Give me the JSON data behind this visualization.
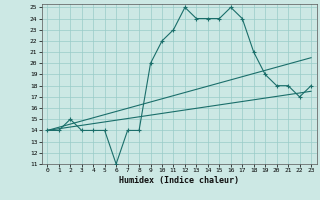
{
  "xlabel": "Humidex (Indice chaleur)",
  "bg_color": "#cce8e4",
  "grid_color": "#99ccc8",
  "line_color": "#1a6e6a",
  "x_hours": [
    0,
    1,
    2,
    3,
    4,
    5,
    6,
    7,
    8,
    9,
    10,
    11,
    12,
    13,
    14,
    15,
    16,
    17,
    18,
    19,
    20,
    21,
    22,
    23
  ],
  "humidex_main": [
    14,
    14,
    15,
    14,
    14,
    14,
    11,
    14,
    14,
    20,
    22,
    23,
    25,
    24,
    24,
    24,
    25,
    24,
    21,
    19,
    18,
    18,
    17,
    18
  ],
  "line2_x": [
    0,
    23
  ],
  "line2_y": [
    14.0,
    20.5
  ],
  "line3_x": [
    0,
    23
  ],
  "line3_y": [
    14.0,
    17.5
  ],
  "ylim_min": 11,
  "ylim_max": 25,
  "xlim_min": -0.5,
  "xlim_max": 23.5
}
